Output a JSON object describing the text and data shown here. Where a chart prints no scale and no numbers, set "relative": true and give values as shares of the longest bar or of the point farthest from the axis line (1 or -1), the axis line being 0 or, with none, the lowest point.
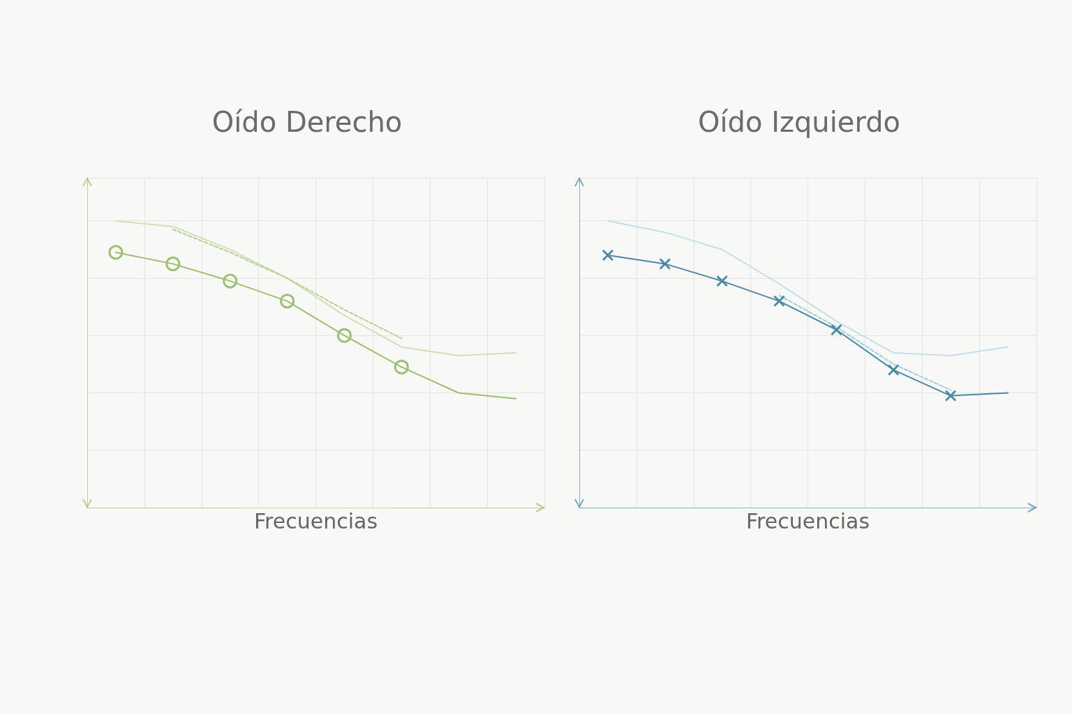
{
  "chart_data": [
    {
      "type": "line",
      "title": "Oído Derecho",
      "xlabel": "Frecuencias",
      "relative": true,
      "grid": true,
      "categories": [
        null,
        null,
        null,
        null,
        null,
        null,
        null,
        null
      ],
      "series": [
        {
          "color": "#9dbf72",
          "marker": "circle",
          "line_style": "solid",
          "values": [
            0.89,
            0.85,
            0.79,
            0.72,
            0.6,
            0.49,
            null,
            null
          ]
        },
        {
          "color": "#9dbf72",
          "line_style": "solid",
          "values": [
            null,
            null,
            null,
            null,
            null,
            0.49,
            0.4,
            0.38
          ]
        },
        {
          "color": "#cfe0b6",
          "marker": "none",
          "line_style": "solid",
          "values": [
            1.0,
            0.98,
            0.9,
            0.8,
            0.67,
            0.56,
            0.53,
            0.54
          ]
        },
        {
          "color": "#b5cf95",
          "marker": "none",
          "line_style": "dashed",
          "values": [
            null,
            0.97,
            0.89,
            0.8,
            0.69,
            0.59,
            null,
            null
          ]
        }
      ]
    },
    {
      "type": "line",
      "title": "Oído Izquierdo",
      "xlabel": "Frecuencias",
      "relative": true,
      "grid": true,
      "categories": [
        null,
        null,
        null,
        null,
        null,
        null,
        null,
        null
      ],
      "series": [
        {
          "color": "#4a88a8",
          "marker": "cross",
          "line_style": "solid",
          "values": [
            0.88,
            0.85,
            0.79,
            0.72,
            0.62,
            0.48,
            0.39,
            null
          ]
        },
        {
          "color": "#4a88a8",
          "line_style": "solid",
          "values": [
            null,
            null,
            null,
            null,
            null,
            null,
            0.39,
            0.4
          ]
        },
        {
          "color": "#c3dfe8",
          "marker": "none",
          "line_style": "solid",
          "values": [
            1.0,
            0.96,
            0.9,
            0.78,
            0.65,
            0.54,
            0.53,
            0.56
          ]
        },
        {
          "color": "#9fd0e0",
          "marker": "none",
          "line_style": "dashed",
          "values": [
            null,
            null,
            null,
            0.74,
            0.63,
            0.5,
            0.41,
            null
          ]
        }
      ]
    }
  ]
}
